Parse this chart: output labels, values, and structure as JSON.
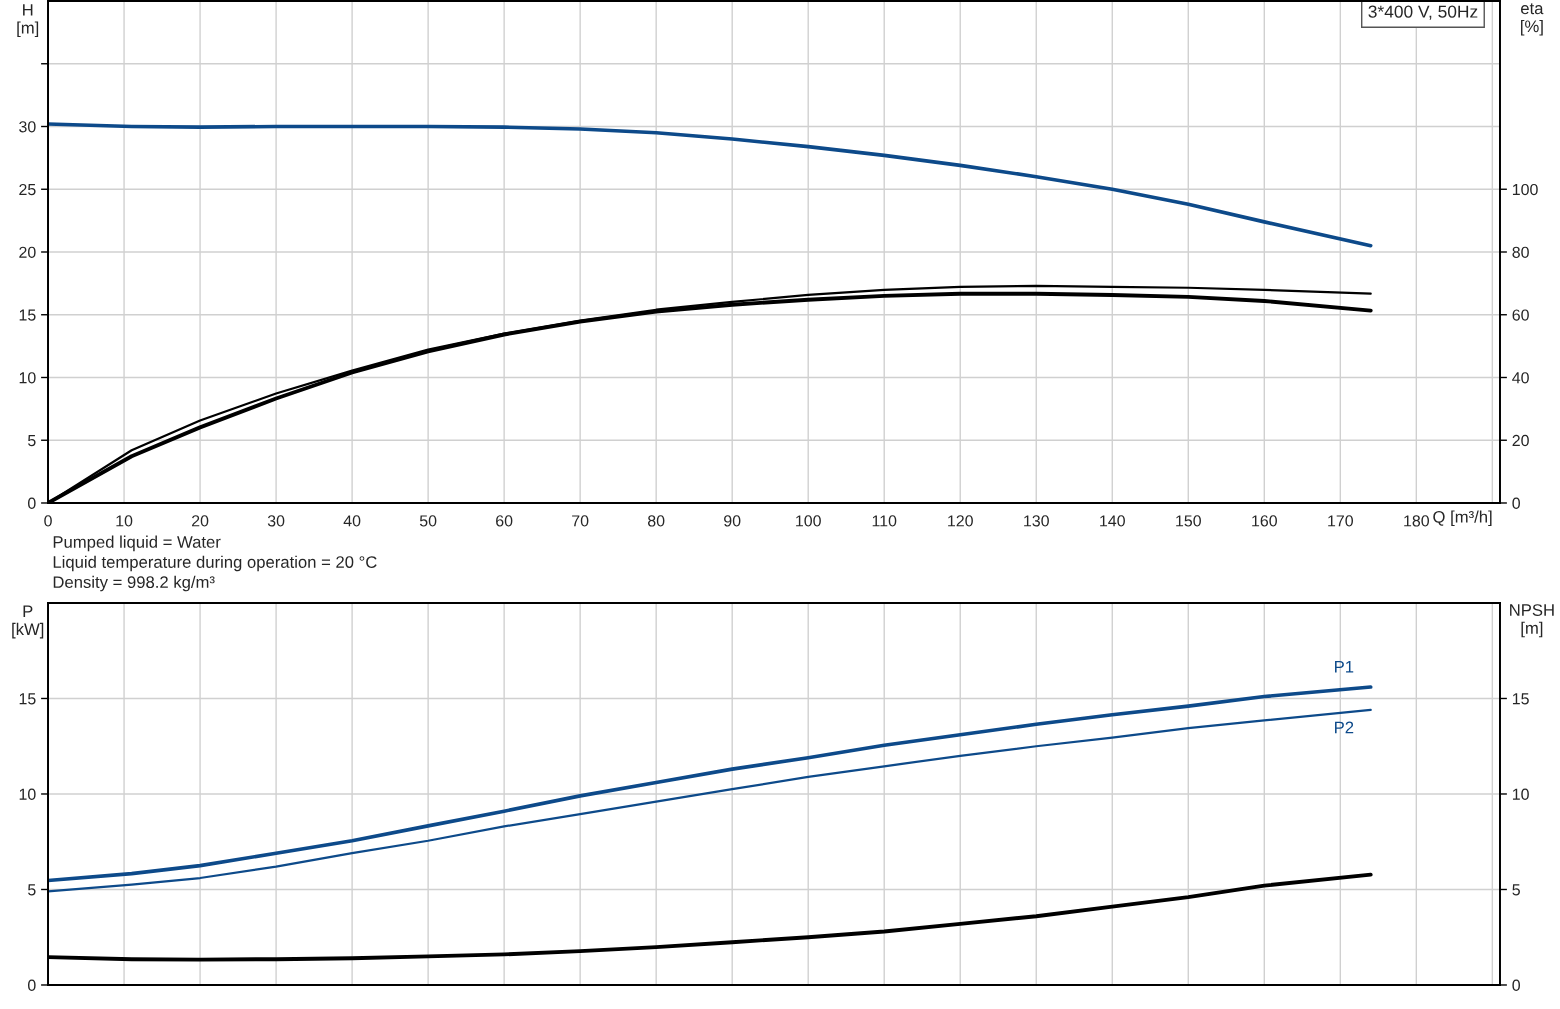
{
  "chart_data": [
    {
      "type": "line",
      "title": "3*400 V, 50Hz",
      "ylabel": "H\n[m]",
      "y2label": "eta\n[%]",
      "xlabel": "Q [m³/h]",
      "xlim": [
        0,
        191
      ],
      "xticks": [
        0,
        10,
        20,
        30,
        40,
        50,
        60,
        70,
        80,
        90,
        100,
        110,
        120,
        130,
        140,
        150,
        160,
        170,
        180,
        {
          "value": 190,
          "label": null
        }
      ],
      "ylim": [
        0,
        40
      ],
      "yticks": [
        0,
        5,
        10,
        15,
        20,
        25,
        30,
        {
          "value": 35,
          "label": null
        }
      ],
      "y2lim": [
        0,
        160
      ],
      "y2ticks": [
        0,
        20,
        40,
        60,
        80,
        100
      ],
      "grid": true,
      "annotations": [
        "Pumped liquid = Water",
        "Liquid temperature during operation = 20 °C",
        "Density = 998.2 kg/m³"
      ],
      "x": [
        0,
        11,
        20,
        30,
        40,
        50,
        60,
        70,
        80,
        90,
        100,
        110,
        120,
        130,
        140,
        150,
        160,
        174
      ],
      "series": [
        {
          "color": "#0d4a8a",
          "values": [
            30.2,
            30.0,
            29.95,
            30.0,
            30.0,
            30.0,
            29.95,
            29.8,
            29.5,
            29.0,
            28.4,
            27.7,
            26.9,
            26.0,
            25.0,
            23.8,
            22.4,
            20.5
          ]
        },
        {
          "color": "#000000",
          "axis": "y2",
          "values": [
            0,
            16.8,
            26.3,
            34.9,
            42.2,
            48.9,
            54.0,
            58.1,
            61.6,
            64.1,
            66.3,
            67.9,
            68.9,
            69.2,
            68.9,
            68.6,
            67.9,
            66.7
          ]
        },
        {
          "color": "#000000",
          "axis": "y2",
          "values": [
            0,
            14.9,
            24.1,
            33.3,
            41.6,
            48.3,
            53.7,
            57.8,
            61.0,
            63.2,
            64.8,
            66.0,
            66.7,
            66.7,
            66.3,
            65.7,
            64.4,
            61.3
          ]
        }
      ]
    },
    {
      "type": "line",
      "ylabel": "P\n[kW]",
      "y2label": "NPSH\n[m]",
      "xlim": [
        0,
        191
      ],
      "xticks": [
        0,
        10,
        20,
        30,
        40,
        50,
        60,
        70,
        80,
        90,
        100,
        110,
        120,
        130,
        140,
        150,
        160,
        170,
        180,
        190
      ],
      "ylim": [
        0,
        20
      ],
      "yticks": [
        0,
        5,
        10,
        15
      ],
      "y2lim": [
        0,
        20
      ],
      "y2ticks": [
        0,
        5,
        10,
        15
      ],
      "grid": true,
      "tick_labels": "y",
      "x": [
        0,
        11,
        20,
        30,
        40,
        50,
        60,
        70,
        80,
        90,
        100,
        110,
        120,
        130,
        140,
        150,
        160,
        174
      ],
      "series": [
        {
          "name": "P1",
          "color": "#0d4a8a",
          "values": [
            5.47,
            5.83,
            6.25,
            6.9,
            7.55,
            8.33,
            9.1,
            9.9,
            10.6,
            11.3,
            11.9,
            12.55,
            13.1,
            13.65,
            14.15,
            14.6,
            15.1,
            15.6
          ]
        },
        {
          "name": "P2",
          "color": "#0d4a8a",
          "values": [
            4.9,
            5.26,
            5.6,
            6.2,
            6.9,
            7.55,
            8.3,
            8.95,
            9.6,
            10.25,
            10.9,
            11.45,
            12.0,
            12.5,
            12.95,
            13.45,
            13.85,
            14.4
          ]
        },
        {
          "color": "#000000",
          "axis": "y2",
          "values": [
            1.46,
            1.35,
            1.33,
            1.35,
            1.4,
            1.5,
            1.6,
            1.77,
            1.98,
            2.24,
            2.5,
            2.8,
            3.2,
            3.6,
            4.1,
            4.6,
            5.2,
            5.78
          ]
        }
      ]
    }
  ]
}
